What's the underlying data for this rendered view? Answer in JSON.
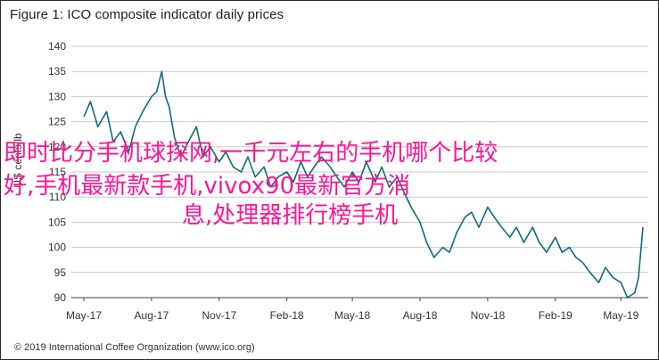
{
  "chart_data": {
    "type": "line",
    "title": "Figure 1: ICO composite indicator daily prices",
    "ylabel": "US cents/lb",
    "xlabel": "",
    "ylim": [
      90,
      140
    ],
    "yticks": [
      90,
      95,
      100,
      105,
      110,
      115,
      120,
      125,
      130,
      135,
      140
    ],
    "xticks": [
      "May-17",
      "Aug-17",
      "Nov-17",
      "Feb-18",
      "May-18",
      "Aug-18",
      "Nov-18",
      "Feb-19",
      "May-19"
    ],
    "x_range": [
      "May-17",
      "May-19"
    ],
    "grid": "horizontal",
    "series": [
      {
        "color": "#0e6e78",
        "x": [
          "2017-05-01",
          "2017-05-10",
          "2017-05-20",
          "2017-06-01",
          "2017-06-10",
          "2017-06-20",
          "2017-07-01",
          "2017-07-10",
          "2017-07-20",
          "2017-08-01",
          "2017-08-08",
          "2017-08-15",
          "2017-08-20",
          "2017-08-25",
          "2017-09-01",
          "2017-09-10",
          "2017-09-20",
          "2017-10-01",
          "2017-10-10",
          "2017-10-20",
          "2017-11-01",
          "2017-11-10",
          "2017-11-20",
          "2017-12-01",
          "2017-12-10",
          "2017-12-20",
          "2018-01-01",
          "2018-01-10",
          "2018-01-20",
          "2018-02-01",
          "2018-02-10",
          "2018-02-20",
          "2018-03-01",
          "2018-03-10",
          "2018-03-20",
          "2018-04-01",
          "2018-04-10",
          "2018-04-20",
          "2018-05-01",
          "2018-05-10",
          "2018-05-20",
          "2018-06-01",
          "2018-06-10",
          "2018-06-20",
          "2018-07-01",
          "2018-07-10",
          "2018-07-20",
          "2018-08-01",
          "2018-08-10",
          "2018-08-20",
          "2018-09-01",
          "2018-09-10",
          "2018-09-20",
          "2018-10-01",
          "2018-10-10",
          "2018-10-20",
          "2018-11-01",
          "2018-11-10",
          "2018-11-20",
          "2018-12-01",
          "2018-12-10",
          "2018-12-20",
          "2019-01-01",
          "2019-01-10",
          "2019-01-20",
          "2019-02-01",
          "2019-02-10",
          "2019-02-20",
          "2019-03-01",
          "2019-03-10",
          "2019-03-20",
          "2019-04-01",
          "2019-04-10",
          "2019-04-20",
          "2019-05-01",
          "2019-05-10",
          "2019-05-20",
          "2019-05-25",
          "2019-05-31"
        ],
        "y": [
          126,
          129,
          124,
          127,
          121,
          123,
          119,
          124,
          127,
          130,
          131,
          135,
          130,
          128,
          122,
          118,
          121,
          124,
          118,
          120,
          117,
          119,
          116,
          115,
          118,
          114,
          116,
          112,
          114,
          115,
          113,
          117,
          114,
          116,
          118,
          116,
          114,
          112,
          115,
          113,
          117,
          113,
          116,
          112,
          114,
          111,
          108,
          105,
          101,
          98,
          100,
          99,
          103,
          106,
          107,
          104,
          108,
          106,
          104,
          102,
          104,
          101,
          104,
          101,
          99,
          102,
          99,
          100,
          98,
          97,
          95,
          93,
          96,
          94,
          93,
          90,
          91,
          94,
          104
        ]
      }
    ]
  },
  "overlay_text": {
    "line1": "即时比分手机球探网,一千元左右的手机哪个比较",
    "line2": "好,手机最新款手机,vivox90最新官方消",
    "line3": "息,处理器排行榜手机"
  },
  "footer": "© 2019 International Coffee Organization (www.ico.org)"
}
